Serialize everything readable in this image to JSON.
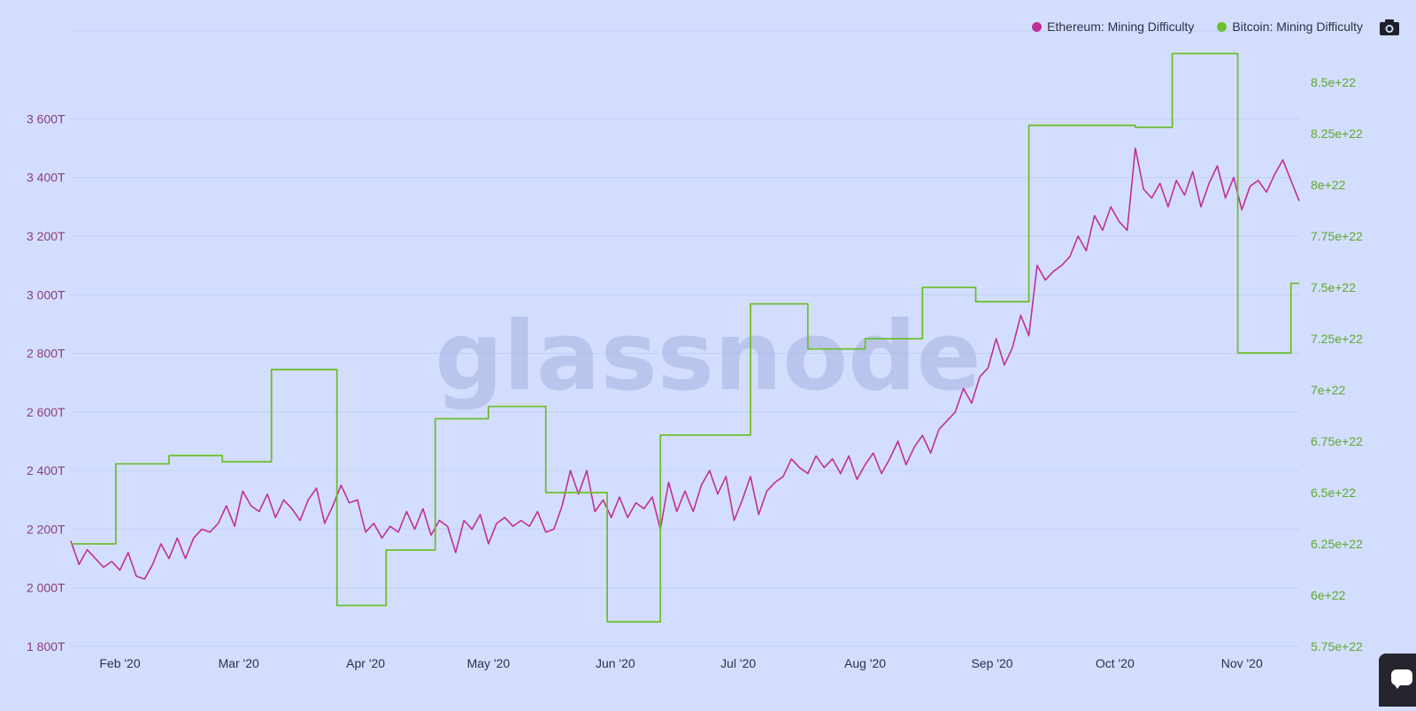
{
  "watermark": "glassnode",
  "legend": [
    {
      "label": "Ethereum: Mining Difficulty",
      "color": "#c12e97"
    },
    {
      "label": "Bitcoin: Mining Difficulty",
      "color": "#6ebe2e"
    }
  ],
  "icons": {
    "camera": "camera-icon",
    "chat": "chat-icon"
  },
  "colors": {
    "background": "#d3deff",
    "eth": "#c12e97",
    "btc": "#6ebe2e",
    "grid": "#bfcdf5",
    "left_axis_text": "#8a3d7a",
    "right_axis_text": "#5ea82b"
  },
  "chart_data": {
    "type": "line",
    "title": "",
    "xlabel": "",
    "x_ticks": [
      "Feb '20",
      "Mar '20",
      "Apr '20",
      "May '20",
      "Jun '20",
      "Jul '20",
      "Aug '20",
      "Sep '20",
      "Oct '20",
      "Nov '20"
    ],
    "x_range": [
      "2020-01-20",
      "2020-11-15"
    ],
    "y_left": {
      "label": "",
      "range": [
        1800,
        3900
      ],
      "unit": "T",
      "ticks": [
        "1 800T",
        "2 000T",
        "2 200T",
        "2 400T",
        "2 600T",
        "2 800T",
        "3 000T",
        "3 200T",
        "3 400T",
        "3 600T"
      ],
      "tick_values": [
        1800,
        2000,
        2200,
        2400,
        2600,
        2800,
        3000,
        3200,
        3400,
        3600
      ]
    },
    "y_right": {
      "label": "",
      "range": [
        5.75e+22,
        8.75e+22
      ],
      "ticks": [
        "5.75e+22",
        "6e+22",
        "6.25e+22",
        "6.5e+22",
        "6.75e+22",
        "7e+22",
        "7.25e+22",
        "7.5e+22",
        "7.75e+22",
        "8e+22",
        "8.25e+22",
        "8.5e+22"
      ],
      "tick_values": [
        5.75e+22,
        6e+22,
        6.25e+22,
        6.5e+22,
        6.75e+22,
        7e+22,
        7.25e+22,
        7.5e+22,
        7.75e+22,
        8e+22,
        8.25e+22,
        8.5e+22
      ]
    },
    "grid": true,
    "legend_position": "top-right",
    "series": [
      {
        "name": "Ethereum: Mining Difficulty",
        "axis": "left",
        "style": "line",
        "points": [
          [
            "2020-01-20",
            2160
          ],
          [
            "2020-01-22",
            2080
          ],
          [
            "2020-01-24",
            2130
          ],
          [
            "2020-01-26",
            2100
          ],
          [
            "2020-01-28",
            2070
          ],
          [
            "2020-01-30",
            2090
          ],
          [
            "2020-02-01",
            2060
          ],
          [
            "2020-02-03",
            2120
          ],
          [
            "2020-02-05",
            2040
          ],
          [
            "2020-02-07",
            2030
          ],
          [
            "2020-02-09",
            2080
          ],
          [
            "2020-02-11",
            2150
          ],
          [
            "2020-02-13",
            2100
          ],
          [
            "2020-02-15",
            2170
          ],
          [
            "2020-02-17",
            2100
          ],
          [
            "2020-02-19",
            2170
          ],
          [
            "2020-02-21",
            2200
          ],
          [
            "2020-02-23",
            2190
          ],
          [
            "2020-02-25",
            2220
          ],
          [
            "2020-02-27",
            2280
          ],
          [
            "2020-02-29",
            2210
          ],
          [
            "2020-03-02",
            2330
          ],
          [
            "2020-03-04",
            2280
          ],
          [
            "2020-03-06",
            2260
          ],
          [
            "2020-03-08",
            2320
          ],
          [
            "2020-03-10",
            2240
          ],
          [
            "2020-03-12",
            2300
          ],
          [
            "2020-03-14",
            2270
          ],
          [
            "2020-03-16",
            2230
          ],
          [
            "2020-03-18",
            2300
          ],
          [
            "2020-03-20",
            2340
          ],
          [
            "2020-03-22",
            2220
          ],
          [
            "2020-03-24",
            2280
          ],
          [
            "2020-03-26",
            2350
          ],
          [
            "2020-03-28",
            2290
          ],
          [
            "2020-03-30",
            2300
          ],
          [
            "2020-04-01",
            2190
          ],
          [
            "2020-04-03",
            2220
          ],
          [
            "2020-04-05",
            2170
          ],
          [
            "2020-04-07",
            2210
          ],
          [
            "2020-04-09",
            2190
          ],
          [
            "2020-04-11",
            2260
          ],
          [
            "2020-04-13",
            2200
          ],
          [
            "2020-04-15",
            2270
          ],
          [
            "2020-04-17",
            2180
          ],
          [
            "2020-04-19",
            2230
          ],
          [
            "2020-04-21",
            2210
          ],
          [
            "2020-04-23",
            2120
          ],
          [
            "2020-04-25",
            2230
          ],
          [
            "2020-04-27",
            2200
          ],
          [
            "2020-04-29",
            2250
          ],
          [
            "2020-05-01",
            2150
          ],
          [
            "2020-05-03",
            2220
          ],
          [
            "2020-05-05",
            2240
          ],
          [
            "2020-05-07",
            2210
          ],
          [
            "2020-05-09",
            2230
          ],
          [
            "2020-05-11",
            2210
          ],
          [
            "2020-05-13",
            2260
          ],
          [
            "2020-05-15",
            2190
          ],
          [
            "2020-05-17",
            2200
          ],
          [
            "2020-05-19",
            2280
          ],
          [
            "2020-05-21",
            2400
          ],
          [
            "2020-05-23",
            2320
          ],
          [
            "2020-05-25",
            2400
          ],
          [
            "2020-05-27",
            2260
          ],
          [
            "2020-05-29",
            2300
          ],
          [
            "2020-05-31",
            2240
          ],
          [
            "2020-06-02",
            2310
          ],
          [
            "2020-06-04",
            2240
          ],
          [
            "2020-06-06",
            2290
          ],
          [
            "2020-06-08",
            2270
          ],
          [
            "2020-06-10",
            2310
          ],
          [
            "2020-06-12",
            2200
          ],
          [
            "2020-06-14",
            2360
          ],
          [
            "2020-06-16",
            2260
          ],
          [
            "2020-06-18",
            2330
          ],
          [
            "2020-06-20",
            2260
          ],
          [
            "2020-06-22",
            2350
          ],
          [
            "2020-06-24",
            2400
          ],
          [
            "2020-06-26",
            2320
          ],
          [
            "2020-06-28",
            2380
          ],
          [
            "2020-06-30",
            2230
          ],
          [
            "2020-07-02",
            2300
          ],
          [
            "2020-07-04",
            2380
          ],
          [
            "2020-07-06",
            2250
          ],
          [
            "2020-07-08",
            2330
          ],
          [
            "2020-07-10",
            2360
          ],
          [
            "2020-07-12",
            2380
          ],
          [
            "2020-07-14",
            2440
          ],
          [
            "2020-07-16",
            2410
          ],
          [
            "2020-07-18",
            2390
          ],
          [
            "2020-07-20",
            2450
          ],
          [
            "2020-07-22",
            2410
          ],
          [
            "2020-07-24",
            2440
          ],
          [
            "2020-07-26",
            2390
          ],
          [
            "2020-07-28",
            2450
          ],
          [
            "2020-07-30",
            2370
          ],
          [
            "2020-08-01",
            2420
          ],
          [
            "2020-08-03",
            2460
          ],
          [
            "2020-08-05",
            2390
          ],
          [
            "2020-08-07",
            2440
          ],
          [
            "2020-08-09",
            2500
          ],
          [
            "2020-08-11",
            2420
          ],
          [
            "2020-08-13",
            2480
          ],
          [
            "2020-08-15",
            2520
          ],
          [
            "2020-08-17",
            2460
          ],
          [
            "2020-08-19",
            2540
          ],
          [
            "2020-08-21",
            2570
          ],
          [
            "2020-08-23",
            2600
          ],
          [
            "2020-08-25",
            2680
          ],
          [
            "2020-08-27",
            2630
          ],
          [
            "2020-08-29",
            2720
          ],
          [
            "2020-08-31",
            2750
          ],
          [
            "2020-09-02",
            2850
          ],
          [
            "2020-09-04",
            2760
          ],
          [
            "2020-09-06",
            2820
          ],
          [
            "2020-09-08",
            2930
          ],
          [
            "2020-09-10",
            2860
          ],
          [
            "2020-09-12",
            3100
          ],
          [
            "2020-09-14",
            3050
          ],
          [
            "2020-09-16",
            3080
          ],
          [
            "2020-09-18",
            3100
          ],
          [
            "2020-09-20",
            3130
          ],
          [
            "2020-09-22",
            3200
          ],
          [
            "2020-09-24",
            3150
          ],
          [
            "2020-09-26",
            3270
          ],
          [
            "2020-09-28",
            3220
          ],
          [
            "2020-09-30",
            3300
          ],
          [
            "2020-10-02",
            3250
          ],
          [
            "2020-10-04",
            3220
          ],
          [
            "2020-10-06",
            3500
          ],
          [
            "2020-10-08",
            3360
          ],
          [
            "2020-10-10",
            3330
          ],
          [
            "2020-10-12",
            3380
          ],
          [
            "2020-10-14",
            3300
          ],
          [
            "2020-10-16",
            3390
          ],
          [
            "2020-10-18",
            3340
          ],
          [
            "2020-10-20",
            3420
          ],
          [
            "2020-10-22",
            3300
          ],
          [
            "2020-10-24",
            3380
          ],
          [
            "2020-10-26",
            3440
          ],
          [
            "2020-10-28",
            3330
          ],
          [
            "2020-10-30",
            3400
          ],
          [
            "2020-11-01",
            3290
          ],
          [
            "2020-11-03",
            3370
          ],
          [
            "2020-11-05",
            3390
          ],
          [
            "2020-11-07",
            3350
          ],
          [
            "2020-11-09",
            3410
          ],
          [
            "2020-11-11",
            3460
          ],
          [
            "2020-11-13",
            3390
          ],
          [
            "2020-11-15",
            3320
          ]
        ]
      },
      {
        "name": "Bitcoin: Mining Difficulty",
        "axis": "right",
        "style": "step",
        "points": [
          [
            "2020-01-20",
            6.25e+22
          ],
          [
            "2020-01-31",
            6.64e+22
          ],
          [
            "2020-02-13",
            6.68e+22
          ],
          [
            "2020-02-26",
            6.65e+22
          ],
          [
            "2020-03-09",
            7.1e+22
          ],
          [
            "2020-03-25",
            5.95e+22
          ],
          [
            "2020-04-06",
            6.22e+22
          ],
          [
            "2020-04-18",
            6.86e+22
          ],
          [
            "2020-05-01",
            6.92e+22
          ],
          [
            "2020-05-15",
            6.5e+22
          ],
          [
            "2020-05-30",
            5.87e+22
          ],
          [
            "2020-06-12",
            6.78e+22
          ],
          [
            "2020-07-04",
            7.42e+22
          ],
          [
            "2020-07-18",
            7.2e+22
          ],
          [
            "2020-08-01",
            7.25e+22
          ],
          [
            "2020-08-15",
            7.5e+22
          ],
          [
            "2020-08-28",
            7.43e+22
          ],
          [
            "2020-09-10",
            8.29e+22
          ],
          [
            "2020-10-06",
            8.28e+22
          ],
          [
            "2020-10-15",
            8.64e+22
          ],
          [
            "2020-10-31",
            7.18e+22
          ],
          [
            "2020-11-13",
            7.52e+22
          ],
          [
            "2020-11-15",
            7.52e+22
          ]
        ]
      }
    ]
  }
}
